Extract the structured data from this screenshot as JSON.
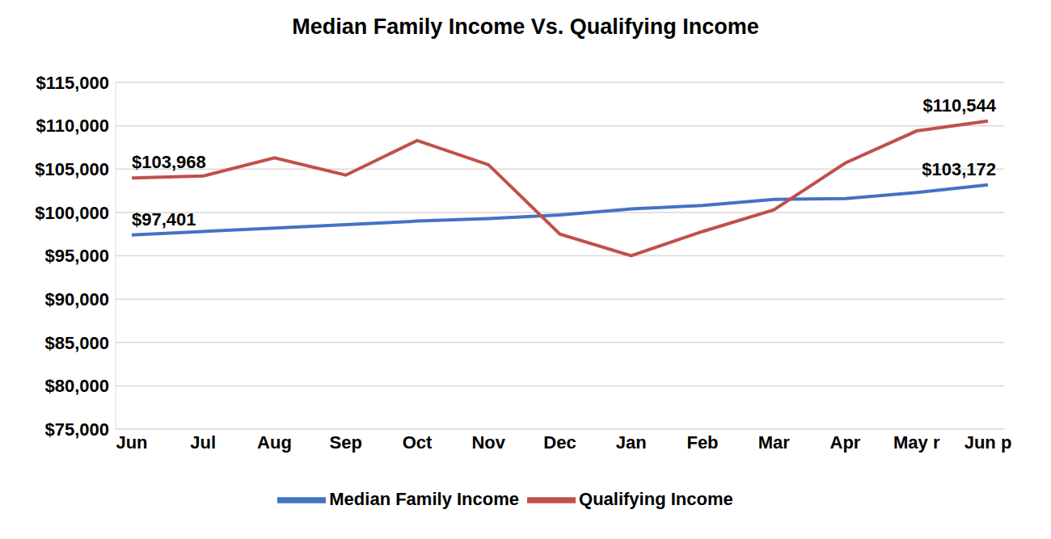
{
  "chart_data": {
    "type": "line",
    "title": "Median Family Income Vs. Qualifying Income",
    "categories": [
      "Jun",
      "Jul",
      "Aug",
      "Sep",
      "Oct",
      "Nov",
      "Dec",
      "Jan",
      "Feb",
      "Mar",
      "Apr",
      "May r",
      "Jun p"
    ],
    "series": [
      {
        "name": "Median Family Income",
        "color": "#4472c4",
        "values": [
          97401,
          97800,
          98200,
          98600,
          99000,
          99300,
          99700,
          100400,
          100800,
          101500,
          101600,
          102300,
          103172
        ],
        "value_labels": [
          "$97,401",
          null,
          null,
          null,
          null,
          null,
          null,
          null,
          null,
          null,
          null,
          null,
          "$103,172"
        ]
      },
      {
        "name": "Qualifying Income",
        "color": "#c0504d",
        "values": [
          103968,
          104200,
          106300,
          104300,
          108300,
          105500,
          97500,
          95000,
          97800,
          100300,
          105700,
          109400,
          110544
        ],
        "value_labels": [
          "$103,968",
          null,
          null,
          null,
          null,
          null,
          null,
          null,
          null,
          null,
          null,
          null,
          "$110,544"
        ]
      }
    ],
    "ylim": [
      75000,
      115000
    ],
    "yticks": [
      {
        "value": 75000,
        "label": "$75,000"
      },
      {
        "value": 80000,
        "label": "$80,000"
      },
      {
        "value": 85000,
        "label": "$85,000"
      },
      {
        "value": 90000,
        "label": "$90,000"
      },
      {
        "value": 95000,
        "label": "$95,000"
      },
      {
        "value": 100000,
        "label": "$100,000"
      },
      {
        "value": 105000,
        "label": "$105,000"
      },
      {
        "value": 110000,
        "label": "$110,000"
      },
      {
        "value": 115000,
        "label": "$115,000"
      }
    ],
    "grid": true,
    "legend": "bottom",
    "data_labels": true
  }
}
